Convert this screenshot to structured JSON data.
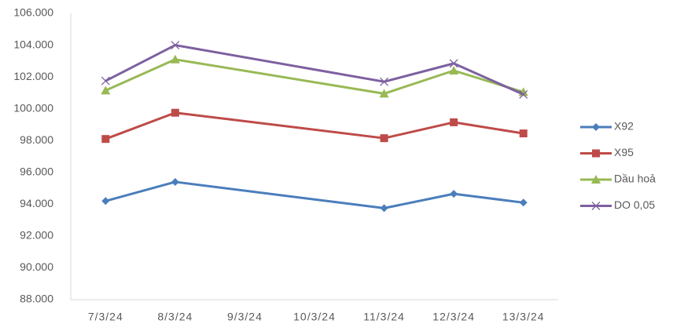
{
  "chart_data": {
    "type": "line",
    "categories": [
      "7/3/24",
      "8/3/24",
      "9/3/24",
      "10/3/24",
      "11/3/24",
      "12/3/24",
      "13/3/24"
    ],
    "x": [
      "7/3/24",
      "8/3/24",
      "11/3/24",
      "12/3/24",
      "13/3/24"
    ],
    "series": [
      {
        "name": "X92",
        "color": "#4a7ebb",
        "marker": "diamond",
        "values": [
          94.2,
          95.4,
          93.75,
          94.65,
          94.1
        ]
      },
      {
        "name": "X95",
        "color": "#be4b48",
        "marker": "square",
        "values": [
          98.1,
          99.75,
          98.15,
          99.15,
          98.45
        ]
      },
      {
        "name": "Dầu hoả",
        "color": "#98b954",
        "marker": "triangle",
        "values": [
          101.15,
          103.1,
          100.95,
          102.4,
          101.05
        ]
      },
      {
        "name": "DO 0,05",
        "color": "#7d60a0",
        "marker": "x",
        "values": [
          101.75,
          104.0,
          101.7,
          102.85,
          100.9
        ]
      }
    ],
    "ylim": [
      88,
      106
    ],
    "yticks": [
      {
        "value": 88,
        "label": "88.000"
      },
      {
        "value": 90,
        "label": "90.000"
      },
      {
        "value": 92,
        "label": "92.000"
      },
      {
        "value": 94,
        "label": "94.000"
      },
      {
        "value": 96,
        "label": "96.000"
      },
      {
        "value": 98,
        "label": "98.000"
      },
      {
        "value": 100,
        "label": "100.000"
      },
      {
        "value": 102,
        "label": "102.000"
      },
      {
        "value": 104,
        "label": "104.000"
      },
      {
        "value": 106,
        "label": "106.000"
      }
    ],
    "grid": false,
    "legend": "right"
  }
}
